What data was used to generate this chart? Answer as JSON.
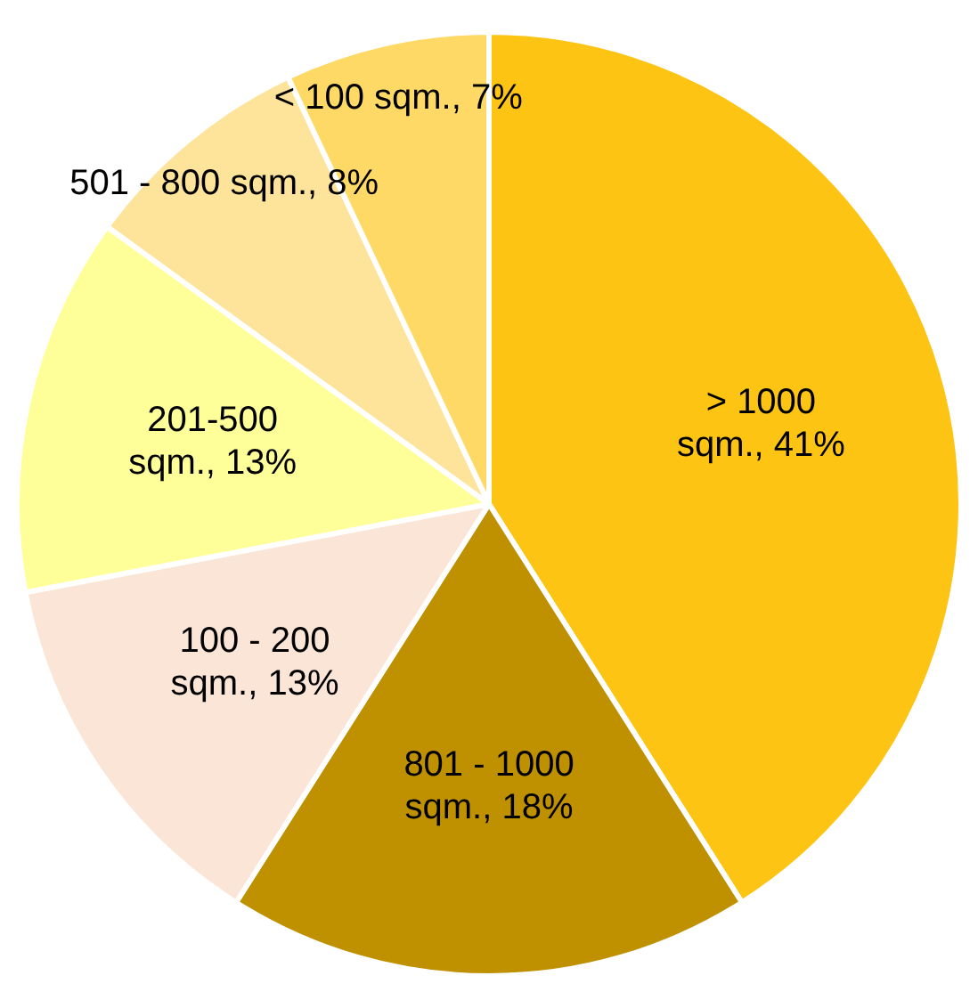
{
  "chart_data": {
    "type": "pie",
    "categories": [
      "> 1000 sqm.",
      "801 - 1000 sqm.",
      "100 - 200 sqm.",
      "201-500 sqm.",
      "501 - 800 sqm.",
      "< 100 sqm."
    ],
    "values": [
      41,
      18,
      13,
      13,
      8,
      7
    ],
    "value_labels": [
      "41%",
      "18%",
      "13%",
      "13%",
      "8%",
      "7%"
    ],
    "colors": [
      "#fdc414",
      "#bf9000",
      "#fbe5d6",
      "#ffff99",
      "#fee39a",
      "#ffd966"
    ],
    "legend": false
  }
}
